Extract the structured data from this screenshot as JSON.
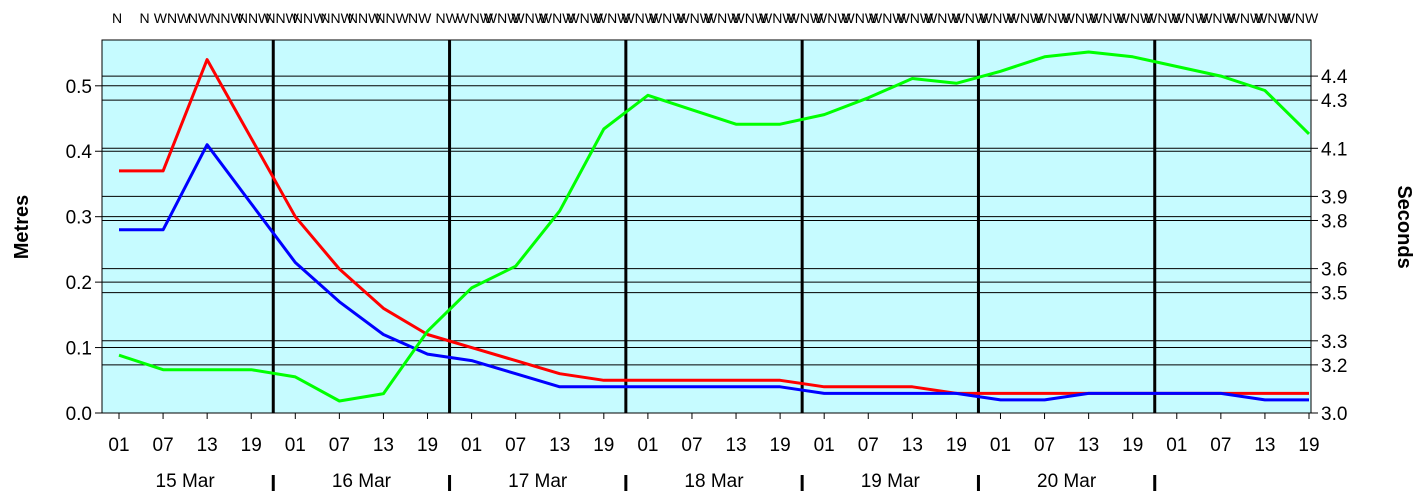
{
  "chart_data": {
    "type": "line",
    "title": "",
    "ylabel_left": "Metres",
    "ylabel_right": "Seconds",
    "ylim_left": [
      0,
      0.57
    ],
    "ylim_right": [
      3.0,
      4.55
    ],
    "left_ticks": [
      "0.0",
      "0.1",
      "0.2",
      "0.3",
      "0.4",
      "0.5"
    ],
    "right_ticks": [
      "3.0",
      "3.2",
      "3.3",
      "3.5",
      "3.6",
      "3.8",
      "3.9",
      "4.1",
      "4.3",
      "4.4"
    ],
    "hour_labels": [
      "01",
      "07",
      "13",
      "19",
      "01",
      "07",
      "13",
      "19",
      "01",
      "07",
      "13",
      "19",
      "01",
      "07",
      "13",
      "19",
      "01",
      "07",
      "13",
      "19",
      "01",
      "07",
      "13",
      "19",
      "01",
      "07",
      "13",
      "19"
    ],
    "day_labels": [
      "15 Mar",
      "16 Mar",
      "17 Mar",
      "18 Mar",
      "19 Mar",
      "20 Mar"
    ],
    "directions": [
      "N",
      "N",
      "WNW",
      "NW",
      "NNW",
      "NNW",
      "NNW",
      "NNW",
      "NNW",
      "NNW",
      "NNW",
      "NW",
      "NW",
      "WNW",
      "WNW",
      "WNW",
      "WNW",
      "WNW",
      "WNW",
      "WNW",
      "WNW",
      "WNW",
      "WNW",
      "WNW",
      "WNW",
      "WNW",
      "WNW",
      "WNW",
      "WNW",
      "WNW",
      "WNW",
      "WNW",
      "WNW",
      "WNW",
      "WNW",
      "WNW",
      "WNW",
      "WNW",
      "WNW",
      "WNW",
      "WNW",
      "WNW",
      "WNW",
      "WNW"
    ],
    "colors": {
      "background": "#c6fbff",
      "red": "#ff0000",
      "blue": "#0000ff",
      "green": "#00ff00"
    },
    "series": [
      {
        "axis": "left",
        "color": "#ff0000",
        "values": [
          0.37,
          0.37,
          0.54,
          0.42,
          0.3,
          0.22,
          0.16,
          0.12,
          0.1,
          0.08,
          0.06,
          0.05,
          0.05,
          0.05,
          0.05,
          0.05,
          0.04,
          0.04,
          0.04,
          0.03,
          0.03,
          0.03,
          0.03,
          0.03,
          0.03,
          0.03,
          0.03,
          0.03
        ]
      },
      {
        "axis": "left",
        "color": "#0000ff",
        "values": [
          0.28,
          0.28,
          0.41,
          0.32,
          0.23,
          0.17,
          0.12,
          0.09,
          0.08,
          0.06,
          0.04,
          0.04,
          0.04,
          0.04,
          0.04,
          0.04,
          0.03,
          0.03,
          0.03,
          0.03,
          0.02,
          0.02,
          0.03,
          0.03,
          0.03,
          0.03,
          0.02,
          0.02
        ]
      },
      {
        "axis": "right",
        "color": "#00ff00",
        "values": [
          3.24,
          3.18,
          3.18,
          3.18,
          3.15,
          3.05,
          3.08,
          3.34,
          3.52,
          3.61,
          3.84,
          4.18,
          4.32,
          4.26,
          4.2,
          4.2,
          4.24,
          4.31,
          4.39,
          4.37,
          4.42,
          4.48,
          4.5,
          4.48,
          4.44,
          4.4,
          4.34,
          4.16
        ]
      }
    ]
  }
}
